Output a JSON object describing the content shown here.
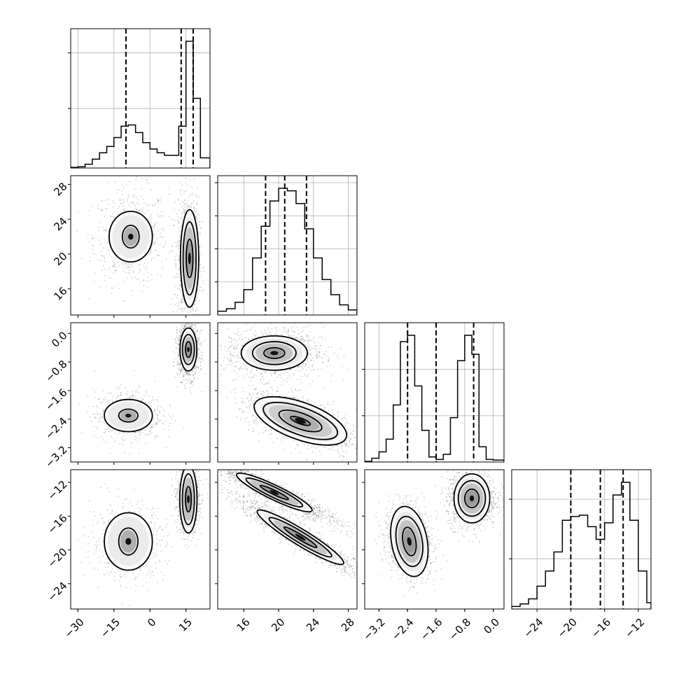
{
  "chart_data": {
    "type": "corner",
    "parameters": [
      {
        "ticks": [
          -30,
          -15,
          0,
          15
        ],
        "tick_labels": [
          "−30",
          "−15",
          "0",
          "15"
        ],
        "range": [
          -33,
          25
        ],
        "quantiles": [
          -10,
          13,
          18
        ],
        "hist_bins": [
          -33,
          -30,
          -27,
          -24,
          -21,
          -18,
          -15,
          -12,
          -9,
          -6,
          -3,
          0,
          3,
          6,
          9,
          12,
          15,
          18,
          21,
          25
        ],
        "hist_counts": [
          0.005,
          0.01,
          0.03,
          0.07,
          0.12,
          0.17,
          0.24,
          0.33,
          0.34,
          0.28,
          0.2,
          0.15,
          0.12,
          0.1,
          0.1,
          0.33,
          1.0,
          0.55,
          0.08
        ],
        "hist_gridlines": [
          0.45,
          0.87
        ]
      },
      {
        "ticks": [
          16,
          20,
          24,
          28
        ],
        "tick_labels": [
          "16",
          "20",
          "24",
          "28"
        ],
        "range": [
          13,
          29
        ],
        "quantiles": [
          18.5,
          20.7,
          23.2
        ],
        "hist_bins": [
          13,
          14,
          15,
          16,
          17,
          18,
          19,
          20,
          21,
          22,
          23,
          24,
          25,
          26,
          27,
          28,
          29
        ],
        "hist_counts": [
          0.03,
          0.05,
          0.1,
          0.2,
          0.45,
          0.7,
          0.9,
          1.0,
          0.98,
          0.88,
          0.68,
          0.45,
          0.28,
          0.16,
          0.08,
          0.04
        ],
        "hist_gridlines": [
          0.25,
          0.5,
          0.75,
          1.0
        ]
      },
      {
        "ticks": [
          -3.2,
          -2.4,
          -1.6,
          -0.8,
          0.0
        ],
        "tick_labels": [
          "−3.2",
          "−2.4",
          "−1.6",
          "−0.8",
          "0.0"
        ],
        "range": [
          -3.6,
          0.3
        ],
        "quantiles": [
          -2.4,
          -1.6,
          -0.55
        ],
        "hist_bins": [
          -3.6,
          -3.4,
          -3.2,
          -3.0,
          -2.8,
          -2.6,
          -2.4,
          -2.2,
          -2.0,
          -1.8,
          -1.6,
          -1.4,
          -1.2,
          -1.0,
          -0.8,
          -0.6,
          -0.4,
          -0.2,
          0.0,
          0.3
        ],
        "hist_counts": [
          0.005,
          0.03,
          0.08,
          0.18,
          0.45,
          0.95,
          1.0,
          0.6,
          0.25,
          0.04,
          0.02,
          0.06,
          0.35,
          0.8,
          1.0,
          0.85,
          0.12,
          0.02,
          0.015
        ],
        "hist_gridlines": [
          0.7,
          0.35
        ]
      },
      {
        "ticks": [
          -24,
          -20,
          -16,
          -12
        ],
        "tick_labels": [
          "−24",
          "−20",
          "−16",
          "−12"
        ],
        "range": [
          -27,
          -10.5
        ],
        "quantiles": [
          -20,
          -16.5,
          -13.8
        ],
        "hist_bins": [
          -27,
          -26,
          -25,
          -24,
          -23,
          -22,
          -21,
          -20,
          -19,
          -18,
          -17,
          -16,
          -15,
          -14,
          -13,
          -12,
          -11,
          -10.5
        ],
        "hist_counts": [
          0.02,
          0.04,
          0.08,
          0.18,
          0.3,
          0.45,
          0.7,
          0.73,
          0.74,
          0.65,
          0.55,
          0.68,
          0.9,
          1.0,
          0.7,
          0.3,
          0.05
        ],
        "hist_gridlines": [
          0.38,
          0.83
        ]
      }
    ],
    "pairs": [
      {
        "x": 0,
        "y": 1,
        "blobs": [
          {
            "center": [
              -8,
              22
            ],
            "sigma": [
              5.5,
              2.0
            ],
            "angle": 0,
            "density": 0.5
          },
          {
            "center": [
              16,
              19.5
            ],
            "sigma": [
              1.6,
              2.5
            ],
            "angle": 0,
            "density": 1.0
          }
        ],
        "contours": [
          {
            "center": [
              -8,
              22
            ],
            "radii": [
              [
                3.5,
                1.3
              ],
              [
                9,
                2.9
              ]
            ],
            "angle": 0
          },
          {
            "center": [
              16.5,
              19.5
            ],
            "radii": [
              [
                1.4,
                2.2
              ],
              [
                2.7,
                4.2
              ],
              [
                3.8,
                5.6
              ]
            ],
            "angle": 0
          }
        ]
      },
      {
        "x": 0,
        "y": 2,
        "blobs": [
          {
            "center": [
              -9,
              -2.3
            ],
            "sigma": [
              5.0,
              0.25
            ],
            "angle": 0,
            "density": 0.5
          },
          {
            "center": [
              16,
              -0.45
            ],
            "sigma": [
              1.6,
              0.28
            ],
            "angle": 0,
            "density": 1.0
          }
        ],
        "contours": [
          {
            "center": [
              -9,
              -2.3
            ],
            "radii": [
              [
                4,
                0.18
              ],
              [
                10,
                0.45
              ]
            ],
            "angle": 0
          },
          {
            "center": [
              16,
              -0.45
            ],
            "radii": [
              [
                1.2,
                0.22
              ],
              [
                2.5,
                0.42
              ],
              [
                3.5,
                0.6
              ]
            ],
            "angle": 0
          }
        ]
      },
      {
        "x": 0,
        "y": 3,
        "blobs": [
          {
            "center": [
              -9,
              -19
            ],
            "sigma": [
              5.5,
              1.6
            ],
            "angle": 0,
            "density": 0.5
          },
          {
            "center": [
              16,
              -14
            ],
            "sigma": [
              1.6,
              1.4
            ],
            "angle": 0,
            "density": 1.0
          }
        ],
        "contours": [
          {
            "center": [
              -9,
              -19
            ],
            "radii": [
              [
                4,
                1.6
              ],
              [
                10,
                3.4
              ]
            ],
            "angle": 0
          },
          {
            "center": [
              16,
              -14
            ],
            "radii": [
              [
                1.2,
                1.5
              ],
              [
                2.5,
                3.0
              ],
              [
                3.6,
                4.0
              ]
            ],
            "angle": 0
          }
        ]
      },
      {
        "x": 1,
        "y": 2,
        "blobs": [
          {
            "center": [
              19.5,
              -0.55
            ],
            "sigma": [
              2.0,
              0.25
            ],
            "angle": 0,
            "density": 0.9
          },
          {
            "center": [
              22.5,
              -2.45
            ],
            "sigma": [
              2.5,
              0.22
            ],
            "angle": -0.35,
            "density": 1.0
          }
        ],
        "contours": [
          {
            "center": [
              19.5,
              -0.55
            ],
            "radii": [
              [
                1.2,
                0.15
              ],
              [
                2.5,
                0.32
              ],
              [
                3.8,
                0.48
              ]
            ],
            "angle": 0
          },
          {
            "center": [
              22.5,
              -2.45
            ],
            "radii": [
              [
                1.2,
                0.08
              ],
              [
                2.6,
                0.22
              ],
              [
                4.5,
                0.38
              ],
              [
                5.6,
                0.52
              ]
            ],
            "angle": -0.35
          }
        ]
      },
      {
        "x": 1,
        "y": 3,
        "blobs": [
          {
            "center": [
              19.5,
              -13.2
            ],
            "sigma": [
              3.0,
              0.4
            ],
            "angle": -0.45,
            "density": 1.0
          },
          {
            "center": [
              22.5,
              -18.5
            ],
            "sigma": [
              3.5,
              0.45
            ],
            "angle": -0.55,
            "density": 1.0
          }
        ],
        "contours": [
          {
            "center": [
              19.5,
              -13.2
            ],
            "radii": [
              [
                1.8,
                0.25
              ],
              [
                3.6,
                0.6
              ],
              [
                4.8,
                0.85
              ]
            ],
            "angle": -0.45
          },
          {
            "center": [
              22.5,
              -18.5
            ],
            "radii": [
              [
                2.2,
                0.3
              ],
              [
                4.2,
                0.65
              ],
              [
                5.8,
                0.95
              ]
            ],
            "angle": -0.55
          }
        ]
      },
      {
        "x": 2,
        "y": 3,
        "blobs": [
          {
            "center": [
              -2.35,
              -19
            ],
            "sigma": [
              0.22,
              1.6
            ],
            "angle": 0.18,
            "density": 1.0
          },
          {
            "center": [
              -0.6,
              -13.9
            ],
            "sigma": [
              0.25,
              1.2
            ],
            "angle": 0,
            "density": 1.0
          }
        ],
        "contours": [
          {
            "center": [
              -2.35,
              -19
            ],
            "radii": [
              [
                0.18,
                1.7
              ],
              [
                0.36,
                3.0
              ],
              [
                0.5,
                4.2
              ]
            ],
            "angle": 0.18
          },
          {
            "center": [
              -0.6,
              -13.9
            ],
            "radii": [
              [
                0.2,
                1.1
              ],
              [
                0.38,
                2.1
              ],
              [
                0.5,
                2.9
              ]
            ],
            "angle": 0
          }
        ]
      }
    ]
  }
}
